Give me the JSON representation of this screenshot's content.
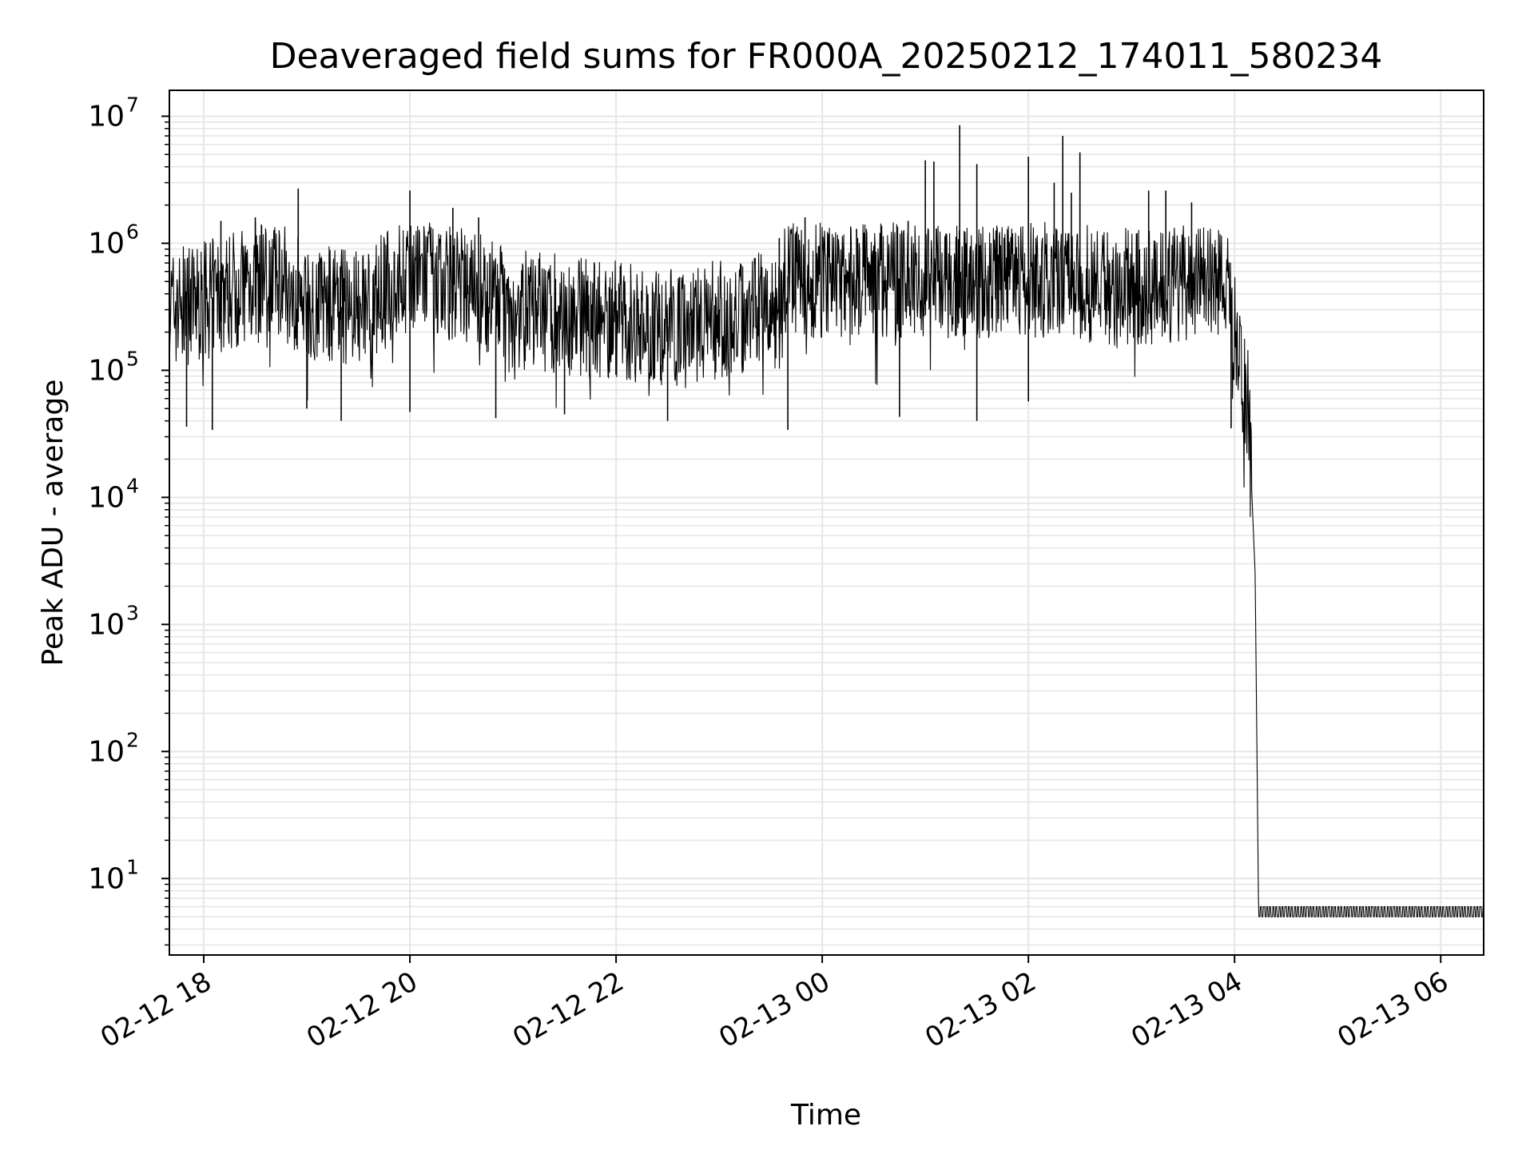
{
  "chart_data": {
    "type": "line",
    "title": "Deaveraged field sums for FR000A_20250212_174011_580234",
    "xlabel": "Time",
    "ylabel": "Peak ADU - average",
    "yscale": "log",
    "ylim": [
      2.5,
      16000000
    ],
    "xlim": [
      "2025-02-12 17:40",
      "2025-02-13 06:25"
    ],
    "grid": true,
    "line_color": "#000000",
    "grid_color": "#e6e6e6",
    "x_ticks": [
      {
        "x": "2025-02-12 18:00",
        "label": "02-12 18"
      },
      {
        "x": "2025-02-12 20:00",
        "label": "02-12 20"
      },
      {
        "x": "2025-02-12 22:00",
        "label": "02-12 22"
      },
      {
        "x": "2025-02-13 00:00",
        "label": "02-13 00"
      },
      {
        "x": "2025-02-13 02:00",
        "label": "02-13 02"
      },
      {
        "x": "2025-02-13 04:00",
        "label": "02-13 04"
      },
      {
        "x": "2025-02-13 06:00",
        "label": "02-13 06"
      }
    ],
    "y_ticks": [
      {
        "value": 10,
        "base": "10",
        "exp": "1"
      },
      {
        "value": 100,
        "base": "10",
        "exp": "2"
      },
      {
        "value": 1000,
        "base": "10",
        "exp": "3"
      },
      {
        "value": 10000,
        "base": "10",
        "exp": "4"
      },
      {
        "value": 100000,
        "base": "10",
        "exp": "5"
      },
      {
        "value": 1000000,
        "base": "10",
        "exp": "6"
      },
      {
        "value": 10000000,
        "base": "10",
        "exp": "7"
      }
    ],
    "series": [
      {
        "points": [
          {
            "x": "2025-02-12 17:40",
            "y": 300000
          },
          {
            "x": "2025-02-12 18:00",
            "y": 350000
          },
          {
            "x": "2025-02-12 18:40",
            "y": 600000
          },
          {
            "x": "2025-02-12 19:00",
            "y": 350000
          },
          {
            "x": "2025-02-12 19:30",
            "y": 300000
          },
          {
            "x": "2025-02-12 20:00",
            "y": 600000
          },
          {
            "x": "2025-02-12 20:30",
            "y": 500000
          },
          {
            "x": "2025-02-12 21:00",
            "y": 300000
          },
          {
            "x": "2025-02-12 21:30",
            "y": 280000
          },
          {
            "x": "2025-02-12 22:00",
            "y": 250000
          },
          {
            "x": "2025-02-12 22:30",
            "y": 220000
          },
          {
            "x": "2025-02-12 23:00",
            "y": 250000
          },
          {
            "x": "2025-02-12 23:35",
            "y": 300000
          },
          {
            "x": "2025-02-12 23:40",
            "y": 550000
          },
          {
            "x": "2025-02-13 00:30",
            "y": 500000
          },
          {
            "x": "2025-02-13 01:00",
            "y": 550000
          },
          {
            "x": "2025-02-13 01:30",
            "y": 500000
          },
          {
            "x": "2025-02-13 02:00",
            "y": 550000
          },
          {
            "x": "2025-02-13 02:30",
            "y": 500000
          },
          {
            "x": "2025-02-13 03:00",
            "y": 450000
          },
          {
            "x": "2025-02-13 03:55",
            "y": 550000
          },
          {
            "x": "2025-02-13 04:00",
            "y": 200000
          },
          {
            "x": "2025-02-13 04:08",
            "y": 50000
          },
          {
            "x": "2025-02-13 04:12",
            "y": 2500
          },
          {
            "x": "2025-02-13 04:14",
            "y": 5.5
          },
          {
            "x": "2025-02-13 06:25",
            "y": 5.5
          }
        ],
        "spikes": [
          {
            "x": "2025-02-12 18:10",
            "y": 1500000
          },
          {
            "x": "2025-02-12 18:30",
            "y": 1600000
          },
          {
            "x": "2025-02-12 18:55",
            "y": 2700000
          },
          {
            "x": "2025-02-12 19:45",
            "y": 1000000
          },
          {
            "x": "2025-02-12 20:00",
            "y": 2600000
          },
          {
            "x": "2025-02-12 20:25",
            "y": 1900000
          },
          {
            "x": "2025-02-12 20:40",
            "y": 1600000
          },
          {
            "x": "2025-02-12 23:35",
            "y": 1100000
          },
          {
            "x": "2025-02-12 23:50",
            "y": 1600000
          },
          {
            "x": "2025-02-13 00:20",
            "y": 1300000
          },
          {
            "x": "2025-02-13 00:50",
            "y": 1500000
          },
          {
            "x": "2025-02-13 01:00",
            "y": 4500000
          },
          {
            "x": "2025-02-13 01:05",
            "y": 4400000
          },
          {
            "x": "2025-02-13 01:20",
            "y": 8500000
          },
          {
            "x": "2025-02-13 01:30",
            "y": 4200000
          },
          {
            "x": "2025-02-13 02:00",
            "y": 4800000
          },
          {
            "x": "2025-02-13 02:15",
            "y": 3000000
          },
          {
            "x": "2025-02-13 02:20",
            "y": 7000000
          },
          {
            "x": "2025-02-13 02:25",
            "y": 2500000
          },
          {
            "x": "2025-02-13 02:30",
            "y": 5200000
          },
          {
            "x": "2025-02-13 03:10",
            "y": 2600000
          },
          {
            "x": "2025-02-13 03:20",
            "y": 2600000
          },
          {
            "x": "2025-02-13 03:35",
            "y": 2100000
          }
        ],
        "dips": [
          {
            "x": "2025-02-12 17:50",
            "y": 36000
          },
          {
            "x": "2025-02-12 18:05",
            "y": 34000
          },
          {
            "x": "2025-02-12 19:00",
            "y": 50000
          },
          {
            "x": "2025-02-12 19:20",
            "y": 40000
          },
          {
            "x": "2025-02-12 20:00",
            "y": 47000
          },
          {
            "x": "2025-02-12 20:50",
            "y": 42000
          },
          {
            "x": "2025-02-12 21:30",
            "y": 45000
          },
          {
            "x": "2025-02-12 22:30",
            "y": 40000
          },
          {
            "x": "2025-02-12 23:40",
            "y": 34000
          },
          {
            "x": "2025-02-13 00:45",
            "y": 43000
          },
          {
            "x": "2025-02-13 01:30",
            "y": 40000
          },
          {
            "x": "2025-02-13 02:00",
            "y": 57000
          },
          {
            "x": "2025-02-13 03:58",
            "y": 35000
          }
        ]
      }
    ]
  }
}
